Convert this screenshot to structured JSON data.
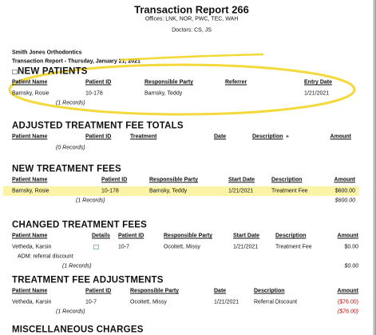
{
  "header": {
    "title": "Transaction Report 266",
    "offices": "Offices: LNK, NOR, PWC, TEC, WAH",
    "doctors": "Doctors: CS, JS",
    "practice": "Smith Jones Orthodontics",
    "report_line": "Transaction Report - Thursday, January 21, 2021"
  },
  "sections": [
    {
      "title": "NEW PATIENTS",
      "columns": [
        "Patient Name",
        "Patient ID",
        "Responsible Party",
        "Referrer",
        "Entry Date"
      ],
      "rows": [
        [
          "Barnsky, Rosie",
          "10-178",
          "Barnsky, Teddy",
          null,
          "1/21/2021"
        ]
      ],
      "records": "(1 Records)"
    },
    {
      "title": "ADJUSTED TREATMENT FEE TOTALS",
      "columns": [
        "Patient Name",
        "Patient ID",
        "Treatment",
        "Date",
        "Description",
        "Amount"
      ],
      "rows": [],
      "records": "(0 Records)"
    },
    {
      "title": "NEW TREATMENT FEES",
      "columns": [
        "Patient Name",
        "Patient ID",
        "Responsible Party",
        "Start Date",
        "Description",
        "Amount"
      ],
      "rows": [
        [
          "Barnsky, Rosie",
          "10-178",
          "Barnsky, Teddy",
          "1/21/2021",
          "Treatment Fee",
          "$600.00"
        ]
      ],
      "records": "(1 Records)",
      "total": "$600.00"
    },
    {
      "title": "CHANGED TREATMENT FEES",
      "columns": [
        "Patient Name",
        "Details",
        "Patient ID",
        "Responsible Party",
        "Start Date",
        "Description",
        "Amount"
      ],
      "rows": [
        [
          "Vetheda, Karsin",
          null,
          "10-7",
          "Ocoitett, Missy",
          "1/21/2021",
          "Treatment Fee",
          "$0.00"
        ]
      ],
      "note": "ADM: referral discount",
      "records": "(1 Records)",
      "total": "$0.00"
    },
    {
      "title": "TREATMENT FEE ADJUSTMENTS",
      "columns": [
        "Patient Name",
        "Patient ID",
        "Responsible Party",
        "Date",
        "Description",
        "Amount"
      ],
      "rows": [
        [
          "Vetheda, Karsin",
          "10-7",
          "Ocoitett, Missy",
          "1/21/2021",
          "Referral Discount",
          "($76.00)"
        ]
      ],
      "records": "(1 Records)",
      "total": "($76.00)",
      "amount_color": "#d40000"
    },
    {
      "title": "MISCELLANEOUS CHARGES"
    }
  ]
}
